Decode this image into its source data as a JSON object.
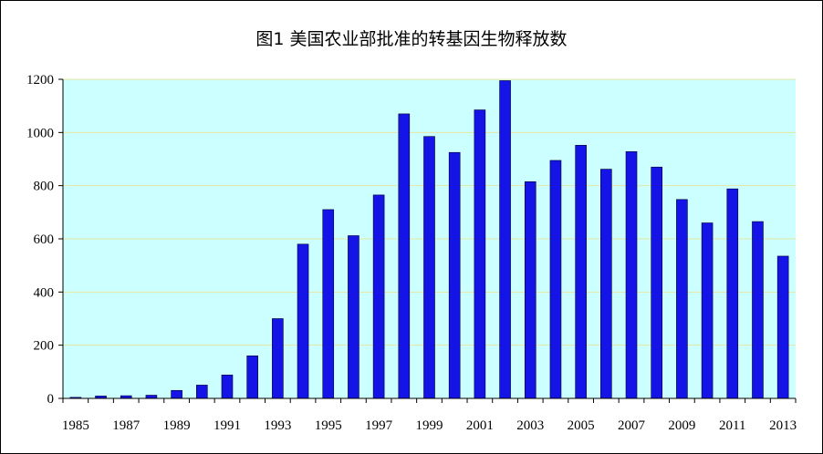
{
  "chart_data": {
    "type": "bar",
    "title": "图1    美国农业部批准的转基因生物释放数",
    "xlabel": "",
    "ylabel": "",
    "ylim": [
      0,
      1200
    ],
    "yticks": [
      0,
      200,
      400,
      600,
      800,
      1000,
      1200
    ],
    "grid": true,
    "legend": "none",
    "categories": [
      "1985",
      "1986",
      "1987",
      "1988",
      "1989",
      "1990",
      "1991",
      "1992",
      "1993",
      "1994",
      "1995",
      "1996",
      "1997",
      "1998",
      "1999",
      "2000",
      "2001",
      "2002",
      "2003",
      "2004",
      "2005",
      "2006",
      "2007",
      "2008",
      "2009",
      "2010",
      "2011",
      "2012",
      "2013"
    ],
    "x_tick_labels": [
      "1985",
      "1987",
      "1989",
      "1991",
      "1993",
      "1995",
      "1997",
      "1999",
      "2001",
      "2003",
      "2005",
      "2007",
      "2009",
      "2011",
      "2013"
    ],
    "values": [
      4,
      9,
      10,
      12,
      30,
      50,
      88,
      160,
      300,
      580,
      710,
      612,
      765,
      1070,
      985,
      925,
      1085,
      1195,
      815,
      895,
      952,
      862,
      928,
      870,
      748,
      660,
      788,
      665,
      535
    ],
    "colors": {
      "bar": "#1414e6",
      "bar_edge": "#000033",
      "plot_background": "#ccffff",
      "gridline": "#e6e6a0",
      "axis": "#000000"
    }
  }
}
